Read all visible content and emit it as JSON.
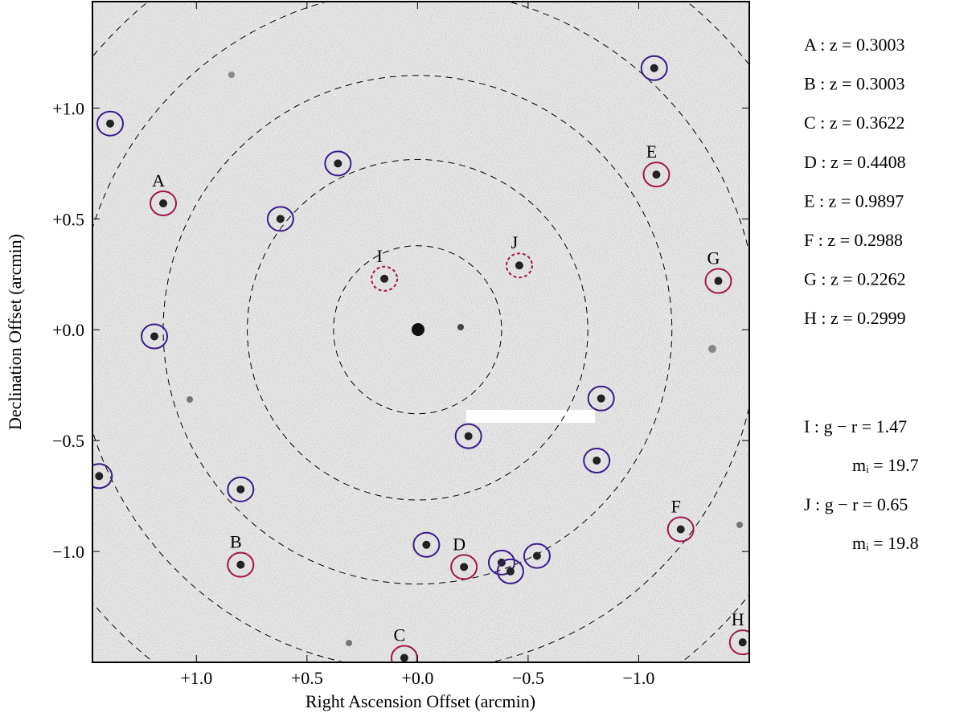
{
  "chart_data": {
    "type": "scatter",
    "x_label": "Right Ascension Offset (arcmin)",
    "y_label": "Declination Offset (arcmin)",
    "xlim": [
      1.47,
      -1.5
    ],
    "ylim": [
      -1.5,
      1.48
    ],
    "xticks": [
      {
        "value": 1.0,
        "label": "+1.0"
      },
      {
        "value": 0.5,
        "label": "+0.5"
      },
      {
        "value": 0.0,
        "label": "+0.0"
      },
      {
        "value": -0.5,
        "label": "−0.5"
      },
      {
        "value": -1.0,
        "label": "−1.0"
      }
    ],
    "yticks": [
      {
        "value": -1.0,
        "label": "−1.0"
      },
      {
        "value": -0.5,
        "label": "−0.5"
      },
      {
        "value": 0.0,
        "label": "+0.0"
      },
      {
        "value": 0.5,
        "label": "+0.5"
      },
      {
        "value": 1.0,
        "label": "+1.0"
      }
    ],
    "ring_radii": [
      0.38,
      0.77,
      1.15,
      1.54,
      1.92
    ],
    "points": [
      {
        "x": 1.39,
        "y": 0.93,
        "color": "#3b1a8c"
      },
      {
        "x": 0.36,
        "y": 0.75,
        "color": "#3b1a8c"
      },
      {
        "x": 0.62,
        "y": 0.5,
        "color": "#3b1a8c"
      },
      {
        "x": 1.19,
        "y": -0.03,
        "color": "#3b1a8c"
      },
      {
        "x": -1.07,
        "y": 1.18,
        "color": "#3b1a8c"
      },
      {
        "x": -0.83,
        "y": -0.31,
        "color": "#3b1a8c"
      },
      {
        "x": -0.23,
        "y": -0.48,
        "color": "#3b1a8c"
      },
      {
        "x": -0.81,
        "y": -0.59,
        "color": "#3b1a8c"
      },
      {
        "x": 0.8,
        "y": -0.72,
        "color": "#3b1a8c"
      },
      {
        "x": 1.44,
        "y": -0.66,
        "color": "#3b1a8c"
      },
      {
        "x": -0.04,
        "y": -0.97,
        "color": "#3b1a8c"
      },
      {
        "x": -0.38,
        "y": -1.05,
        "color": "#3b1a8c"
      },
      {
        "x": -0.42,
        "y": -1.09,
        "color": "#3b1a8c"
      },
      {
        "x": -0.54,
        "y": -1.02,
        "color": "#3b1a8c"
      },
      {
        "x": 1.15,
        "y": 0.57,
        "color": "#a3154f",
        "label": "A"
      },
      {
        "x": 0.8,
        "y": -1.06,
        "color": "#a3154f",
        "label": "B"
      },
      {
        "x": 0.06,
        "y": -1.48,
        "color": "#a3154f",
        "label": "C"
      },
      {
        "x": -0.21,
        "y": -1.07,
        "color": "#a3154f",
        "label": "D"
      },
      {
        "x": -1.08,
        "y": 0.7,
        "color": "#a3154f",
        "label": "E"
      },
      {
        "x": -1.19,
        "y": -0.9,
        "color": "#a3154f",
        "label": "F"
      },
      {
        "x": -1.36,
        "y": 0.22,
        "color": "#a3154f",
        "label": "G"
      },
      {
        "x": -1.47,
        "y": -1.41,
        "color": "#a3154f",
        "label": "H"
      },
      {
        "x": 0.15,
        "y": 0.23,
        "color": "#a3154f",
        "label": "I",
        "dashed": true
      },
      {
        "x": -0.46,
        "y": 0.29,
        "color": "#a3154f",
        "label": "J",
        "dashed": true
      }
    ],
    "redshift_notes": [
      "A :  z = 0.3003",
      "B :  z = 0.3003",
      "C :  z = 0.3622",
      "D :  z = 0.4408",
      "E :  z = 0.9897",
      "F :  z = 0.2988",
      "G :  z = 0.2262",
      "H :  z = 0.2999"
    ],
    "photometry_notes": [
      {
        "line1": "I : g − r = 1.47",
        "line2": "mᵢ = 19.7"
      },
      {
        "line1": "J : g − r = 0.65",
        "line2": "mᵢ = 19.8"
      }
    ]
  }
}
